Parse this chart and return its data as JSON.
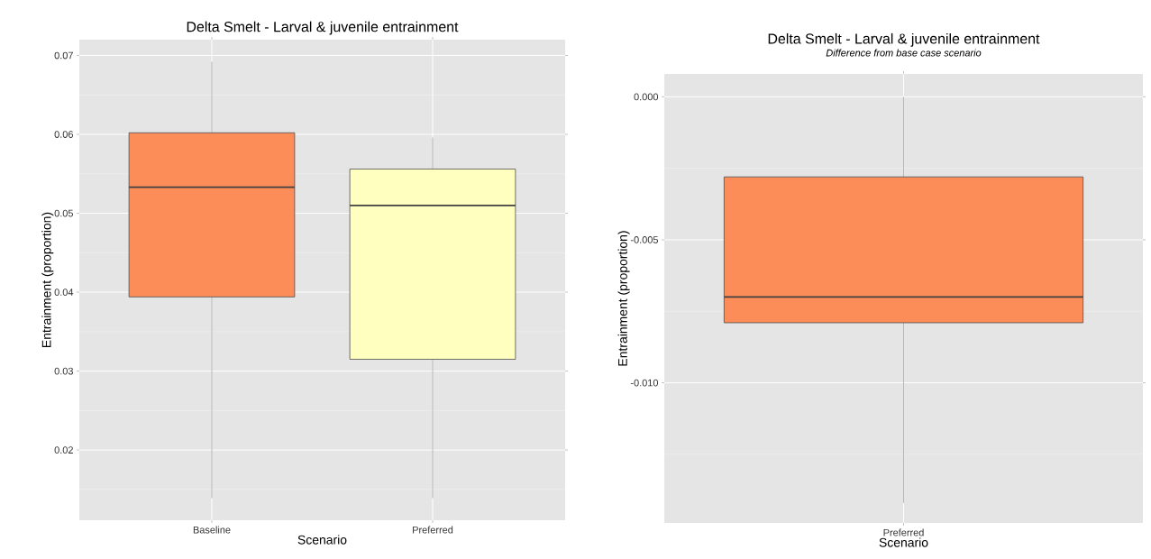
{
  "chart_data": [
    {
      "type": "box",
      "title": "Delta Smelt - Larval & juvenile entrainment",
      "xlabel": "Scenario",
      "ylabel": "Entrainment (proportion)",
      "categories": [
        "Baseline",
        "Preferred"
      ],
      "boxes": [
        {
          "low": 0.0139,
          "q1": 0.0394,
          "median": 0.0533,
          "q3": 0.0602,
          "high": 0.0692
        },
        {
          "low": 0.0139,
          "q1": 0.0315,
          "median": 0.051,
          "q3": 0.0556,
          "high": 0.0596
        }
      ],
      "colors": [
        "#fc8d59",
        "#ffffbf"
      ],
      "ylim": [
        0.0111,
        0.072
      ],
      "yticks": [
        0.02,
        0.03,
        0.04,
        0.05,
        0.06,
        0.07
      ],
      "grid": true
    },
    {
      "type": "box",
      "title": "Delta Smelt - Larval & juvenile entrainment",
      "subtitle": "Difference from base case scenario",
      "xlabel": "Scenario",
      "ylabel": "Entrainment (proportion)",
      "categories": [
        "Preferred"
      ],
      "boxes": [
        {
          "low": -0.0142,
          "q1": -0.0079,
          "median": -0.007,
          "q3": -0.0028,
          "high": 0.0
        }
      ],
      "colors": [
        "#fc8d59"
      ],
      "ylim": [
        -0.0149,
        0.0008
      ],
      "yticks": [
        {
          "value": -0.01,
          "label": "-0.010"
        },
        {
          "value": -0.005,
          "label": "-0.005"
        },
        {
          "value": 0.0,
          "label": "0.000"
        }
      ],
      "grid": true
    }
  ]
}
